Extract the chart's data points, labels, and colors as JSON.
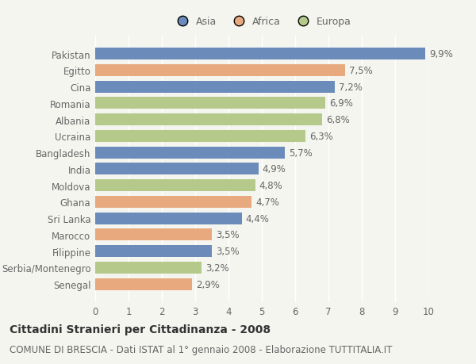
{
  "categories": [
    "Pakistan",
    "Egitto",
    "Cina",
    "Romania",
    "Albania",
    "Ucraina",
    "Bangladesh",
    "India",
    "Moldova",
    "Ghana",
    "Sri Lanka",
    "Marocco",
    "Filippine",
    "Serbia/Montenegro",
    "Senegal"
  ],
  "values": [
    9.9,
    7.5,
    7.2,
    6.9,
    6.8,
    6.3,
    5.7,
    4.9,
    4.8,
    4.7,
    4.4,
    3.5,
    3.5,
    3.2,
    2.9
  ],
  "continents": [
    "Asia",
    "Africa",
    "Asia",
    "Europa",
    "Europa",
    "Europa",
    "Asia",
    "Asia",
    "Europa",
    "Africa",
    "Asia",
    "Africa",
    "Asia",
    "Europa",
    "Africa"
  ],
  "colors": {
    "Asia": "#6b8cba",
    "Africa": "#e8a97e",
    "Europa": "#b5c98a"
  },
  "legend_labels": [
    "Asia",
    "Africa",
    "Europa"
  ],
  "xlim": [
    0,
    10
  ],
  "xticks": [
    0,
    1,
    2,
    3,
    4,
    5,
    6,
    7,
    8,
    9,
    10
  ],
  "title": "Cittadini Stranieri per Cittadinanza - 2008",
  "subtitle": "COMUNE DI BRESCIA - Dati ISTAT al 1° gennaio 2008 - Elaborazione TUTTITALIA.IT",
  "background_color": "#f5f5f0",
  "bar_height": 0.72,
  "label_fontsize": 8.5,
  "tick_fontsize": 8.5,
  "title_fontsize": 10,
  "subtitle_fontsize": 8.5
}
